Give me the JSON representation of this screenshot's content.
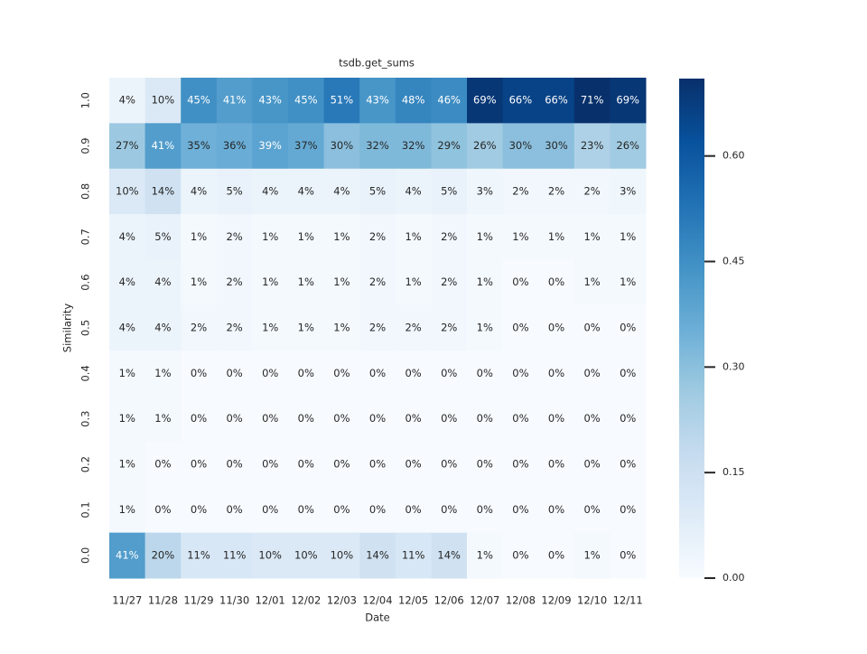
{
  "chart_data": {
    "type": "heatmap",
    "title": "tsdb.get_sums",
    "x_label": "Date",
    "y_label": "Similarity",
    "categories": [
      "11/27",
      "11/28",
      "11/29",
      "11/30",
      "12/01",
      "12/02",
      "12/03",
      "12/04",
      "12/05",
      "12/06",
      "12/07",
      "12/08",
      "12/09",
      "12/10",
      "12/11"
    ],
    "rows": [
      "1.0",
      "0.9",
      "0.8",
      "0.7",
      "0.6",
      "0.5",
      "0.4",
      "0.3",
      "0.2",
      "0.1",
      "0.0"
    ],
    "values": [
      [
        0.04,
        0.1,
        0.45,
        0.41,
        0.43,
        0.45,
        0.51,
        0.43,
        0.48,
        0.46,
        0.69,
        0.66,
        0.66,
        0.71,
        0.69
      ],
      [
        0.27,
        0.41,
        0.35,
        0.36,
        0.39,
        0.37,
        0.3,
        0.32,
        0.32,
        0.29,
        0.26,
        0.3,
        0.3,
        0.23,
        0.26
      ],
      [
        0.1,
        0.14,
        0.04,
        0.05,
        0.04,
        0.04,
        0.04,
        0.05,
        0.04,
        0.05,
        0.03,
        0.02,
        0.02,
        0.02,
        0.03
      ],
      [
        0.04,
        0.05,
        0.01,
        0.02,
        0.01,
        0.01,
        0.01,
        0.02,
        0.01,
        0.02,
        0.01,
        0.01,
        0.01,
        0.01,
        0.01
      ],
      [
        0.04,
        0.04,
        0.01,
        0.02,
        0.01,
        0.01,
        0.01,
        0.02,
        0.01,
        0.02,
        0.01,
        0,
        0,
        0.01,
        0.01
      ],
      [
        0.04,
        0.04,
        0.02,
        0.02,
        0.01,
        0.01,
        0.01,
        0.02,
        0.02,
        0.02,
        0.01,
        0,
        0,
        0,
        0
      ],
      [
        0.01,
        0.01,
        0,
        0,
        0,
        0,
        0,
        0,
        0,
        0,
        0,
        0,
        0,
        0,
        0
      ],
      [
        0.01,
        0.01,
        0,
        0,
        0,
        0,
        0,
        0,
        0,
        0,
        0,
        0,
        0,
        0,
        0
      ],
      [
        0.01,
        0,
        0,
        0,
        0,
        0,
        0,
        0,
        0,
        0,
        0,
        0,
        0,
        0,
        0
      ],
      [
        0.01,
        0,
        0,
        0,
        0,
        0,
        0,
        0,
        0,
        0,
        0,
        0,
        0,
        0,
        0
      ],
      [
        0.41,
        0.2,
        0.11,
        0.11,
        0.1,
        0.1,
        0.1,
        0.14,
        0.11,
        0.14,
        0.01,
        0,
        0,
        0.01,
        0
      ]
    ],
    "value_labels": [
      [
        "4%",
        "10%",
        "45%",
        "41%",
        "43%",
        "45%",
        "51%",
        "43%",
        "48%",
        "46%",
        "69%",
        "66%",
        "66%",
        "71%",
        "69%"
      ],
      [
        "27%",
        "41%",
        "35%",
        "36%",
        "39%",
        "37%",
        "30%",
        "32%",
        "32%",
        "29%",
        "26%",
        "30%",
        "30%",
        "23%",
        "26%"
      ],
      [
        "10%",
        "14%",
        "4%",
        "5%",
        "4%",
        "4%",
        "4%",
        "5%",
        "4%",
        "5%",
        "3%",
        "2%",
        "2%",
        "2%",
        "3%"
      ],
      [
        "4%",
        "5%",
        "1%",
        "2%",
        "1%",
        "1%",
        "1%",
        "2%",
        "1%",
        "2%",
        "1%",
        "1%",
        "1%",
        "1%",
        "1%"
      ],
      [
        "4%",
        "4%",
        "1%",
        "2%",
        "1%",
        "1%",
        "1%",
        "2%",
        "1%",
        "2%",
        "1%",
        "0%",
        "0%",
        "1%",
        "1%"
      ],
      [
        "4%",
        "4%",
        "2%",
        "2%",
        "1%",
        "1%",
        "1%",
        "2%",
        "2%",
        "2%",
        "1%",
        "0%",
        "0%",
        "0%",
        "0%"
      ],
      [
        "1%",
        "1%",
        "0%",
        "0%",
        "0%",
        "0%",
        "0%",
        "0%",
        "0%",
        "0%",
        "0%",
        "0%",
        "0%",
        "0%",
        "0%"
      ],
      [
        "1%",
        "1%",
        "0%",
        "0%",
        "0%",
        "0%",
        "0%",
        "0%",
        "0%",
        "0%",
        "0%",
        "0%",
        "0%",
        "0%",
        "0%"
      ],
      [
        "1%",
        "0%",
        "0%",
        "0%",
        "0%",
        "0%",
        "0%",
        "0%",
        "0%",
        "0%",
        "0%",
        "0%",
        "0%",
        "0%",
        "0%"
      ],
      [
        "1%",
        "0%",
        "0%",
        "0%",
        "0%",
        "0%",
        "0%",
        "0%",
        "0%",
        "0%",
        "0%",
        "0%",
        "0%",
        "0%",
        "0%"
      ],
      [
        "41%",
        "20%",
        "11%",
        "11%",
        "10%",
        "10%",
        "10%",
        "14%",
        "11%",
        "14%",
        "1%",
        "0%",
        "0%",
        "1%",
        "0%"
      ]
    ],
    "zlim": [
      0,
      0.71
    ],
    "zticks": [
      {
        "value": 0,
        "label": "0.00"
      },
      {
        "value": 0.15,
        "label": "0.15"
      },
      {
        "value": 0.3,
        "label": "0.30"
      },
      {
        "value": 0.45,
        "label": "0.45"
      },
      {
        "value": 0.6,
        "label": "0.60"
      }
    ],
    "colorscale": [
      "#f7fbff",
      "#deebf7",
      "#c6dbef",
      "#9ecae1",
      "#6baed6",
      "#4292c6",
      "#2171b5",
      "#08519c",
      "#08306b"
    ]
  }
}
